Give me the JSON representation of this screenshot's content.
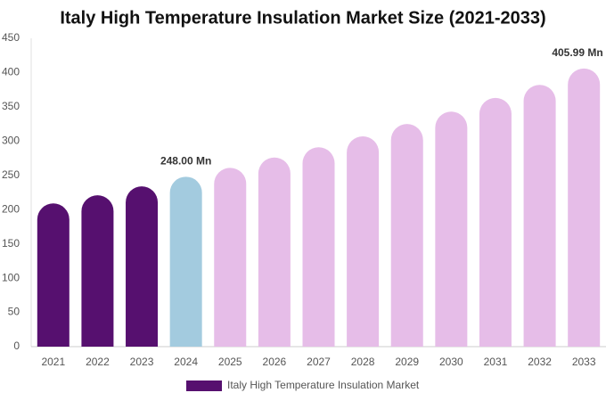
{
  "chart_data": {
    "type": "bar",
    "title": "Italy High Temperature Insulation Market Size (2021-2033)",
    "categories": [
      "2021",
      "2022",
      "2023",
      "2024",
      "2025",
      "2026",
      "2027",
      "2028",
      "2029",
      "2030",
      "2031",
      "2032",
      "2033"
    ],
    "series": [
      {
        "name": "Italy High Temperature Insulation Market",
        "color": "#56106f",
        "values": [
          209,
          221,
          234,
          248.0,
          261,
          276,
          291,
          307,
          325,
          343,
          363,
          382,
          405.99
        ],
        "colors": [
          "#56106f",
          "#56106f",
          "#56106f",
          "#a3cbdf",
          "#e6bde8",
          "#e6bde8",
          "#e6bde8",
          "#e6bde8",
          "#e6bde8",
          "#e6bde8",
          "#e6bde8",
          "#e6bde8",
          "#e6bde8"
        ],
        "value_labels": [
          null,
          null,
          null,
          "248.00 Mn",
          null,
          null,
          null,
          null,
          null,
          null,
          null,
          null,
          "405.99 Mn"
        ]
      }
    ],
    "ylim": [
      0,
      450
    ],
    "yticks": [
      0,
      50,
      100,
      150,
      200,
      250,
      300,
      350,
      400,
      450
    ],
    "grid": false
  }
}
